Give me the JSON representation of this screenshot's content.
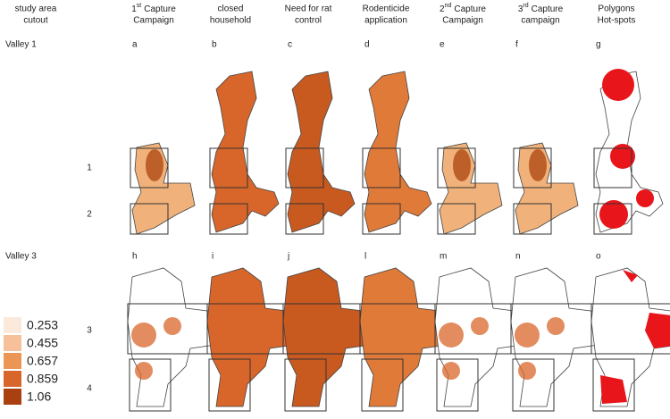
{
  "headers": [
    {
      "lines": [
        "study area",
        "cutout"
      ]
    },
    {
      "ordinal": "1",
      "suffix": "st",
      "lines": [
        "Capture",
        "Campaign"
      ]
    },
    {
      "lines": [
        "closed",
        "household"
      ]
    },
    {
      "lines": [
        "Need for rat",
        "control"
      ]
    },
    {
      "lines": [
        "Rodenticide",
        "application"
      ]
    },
    {
      "ordinal": "2",
      "suffix": "nd",
      "lines": [
        "Capture",
        "Campaign"
      ]
    },
    {
      "ordinal": "3",
      "suffix": "rd",
      "lines": [
        "Capture",
        "campaign"
      ]
    },
    {
      "lines": [
        "Polygons",
        "Hot-spots"
      ]
    }
  ],
  "valleys": [
    {
      "label": "Valley 1",
      "panels": [
        "a",
        "b",
        "c",
        "d",
        "e",
        "f",
        "g"
      ],
      "areas": [
        "1",
        "2"
      ]
    },
    {
      "label": "Valley 3",
      "panels": [
        "h",
        "i",
        "j",
        "l",
        "m",
        "n",
        "o"
      ],
      "areas": [
        "3",
        "4"
      ]
    }
  ],
  "legend": [
    "0.253",
    "0.455",
    "0.657",
    "0.859",
    "1.06"
  ]
}
